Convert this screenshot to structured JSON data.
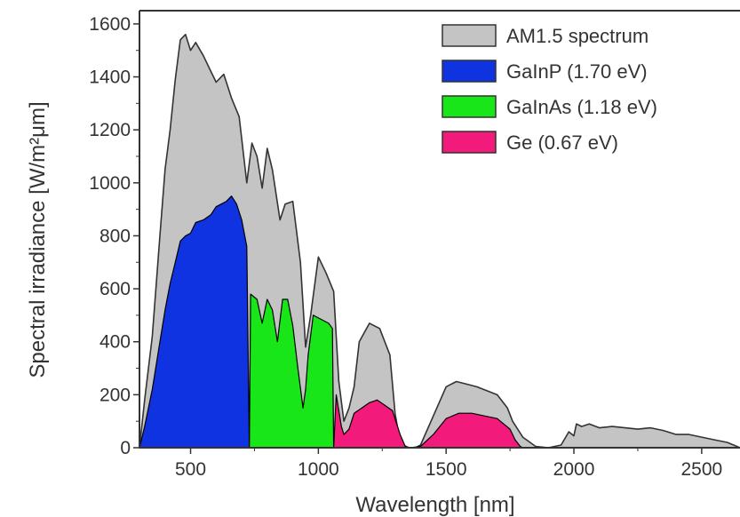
{
  "chart_data": {
    "type": "area",
    "xlabel": "Wavelength [nm]",
    "ylabel": "Spectral irradiance [W/m²μm]",
    "xlim": [
      300,
      2650
    ],
    "ylim": [
      0,
      1650
    ],
    "xticks": [
      500,
      1000,
      1500,
      2000,
      2500
    ],
    "yticks": [
      0,
      200,
      400,
      600,
      800,
      1000,
      1200,
      1400,
      1600
    ],
    "legend_position": "top-right",
    "series": [
      {
        "name": "AM1.5 spectrum",
        "color": "#c4c4c4",
        "edge_color": "#333333",
        "x": [
          300,
          320,
          350,
          380,
          400,
          420,
          440,
          460,
          480,
          500,
          520,
          550,
          580,
          600,
          630,
          660,
          690,
          720,
          740,
          760,
          780,
          800,
          820,
          850,
          870,
          900,
          930,
          950,
          970,
          1000,
          1030,
          1060,
          1080,
          1100,
          1120,
          1140,
          1160,
          1200,
          1240,
          1280,
          1300,
          1320,
          1350,
          1380,
          1400,
          1450,
          1500,
          1540,
          1580,
          1620,
          1660,
          1700,
          1740,
          1760,
          1800,
          1850,
          1900,
          1950,
          1980,
          2000,
          2010,
          2030,
          2060,
          2100,
          2150,
          2200,
          2250,
          2300,
          2350,
          2400,
          2450,
          2500,
          2550,
          2600,
          2650
        ],
        "y": [
          0,
          180,
          420,
          800,
          1050,
          1200,
          1390,
          1540,
          1560,
          1500,
          1530,
          1480,
          1420,
          1380,
          1410,
          1320,
          1250,
          1000,
          1150,
          1100,
          980,
          1130,
          1050,
          860,
          920,
          930,
          700,
          380,
          500,
          720,
          660,
          590,
          250,
          100,
          150,
          230,
          400,
          470,
          450,
          350,
          130,
          20,
          0,
          0,
          10,
          120,
          230,
          250,
          240,
          230,
          215,
          200,
          150,
          100,
          40,
          5,
          0,
          10,
          60,
          45,
          90,
          80,
          90,
          75,
          80,
          75,
          70,
          75,
          65,
          50,
          50,
          40,
          30,
          20,
          0
        ]
      },
      {
        "name": "GaInP (1.70 eV)",
        "color": "#0f33e0",
        "edge_color": "#000000",
        "x": [
          300,
          320,
          350,
          380,
          400,
          420,
          440,
          460,
          480,
          500,
          520,
          550,
          580,
          600,
          620,
          640,
          660,
          680,
          700,
          720,
          730
        ],
        "y": [
          0,
          80,
          220,
          400,
          520,
          620,
          700,
          780,
          800,
          810,
          850,
          860,
          880,
          910,
          920,
          930,
          950,
          920,
          860,
          760,
          0
        ]
      },
      {
        "name": "GaInAs (1.18 eV)",
        "color": "#19e619",
        "edge_color": "#000000",
        "x": [
          730,
          735,
          760,
          780,
          800,
          820,
          840,
          860,
          880,
          900,
          920,
          940,
          950,
          960,
          980,
          1000,
          1020,
          1040,
          1055,
          1060
        ],
        "y": [
          0,
          580,
          560,
          470,
          560,
          520,
          400,
          560,
          560,
          460,
          300,
          150,
          220,
          350,
          500,
          490,
          480,
          470,
          450,
          0
        ]
      },
      {
        "name": "Ge (0.67 eV)",
        "color": "#f21a7a",
        "edge_color": "#000000",
        "x": [
          1060,
          1070,
          1090,
          1100,
          1120,
          1140,
          1170,
          1200,
          1230,
          1260,
          1290,
          1320,
          1340,
          1360,
          1400,
          1450,
          1500,
          1550,
          1600,
          1650,
          1700,
          1750,
          1770,
          1790,
          1800
        ],
        "y": [
          0,
          200,
          80,
          50,
          70,
          130,
          150,
          170,
          180,
          160,
          140,
          50,
          5,
          0,
          5,
          50,
          110,
          130,
          130,
          120,
          110,
          70,
          30,
          5,
          0
        ]
      }
    ]
  }
}
